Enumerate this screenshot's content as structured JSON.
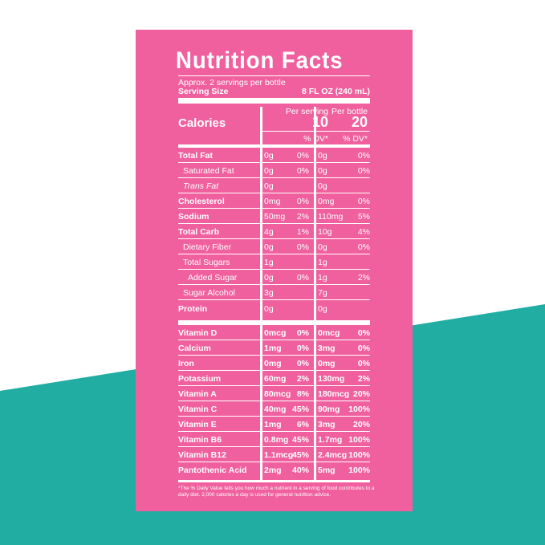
{
  "colors": {
    "pink": "#f0609e",
    "teal": "#21ada2",
    "white": "#ffffff"
  },
  "title": "Nutrition Facts",
  "servings": "Approx. 2 servings per bottle",
  "serving_size_label": "Serving Size",
  "serving_size_value": "8 FL OZ (240 mL)",
  "calories": {
    "label": "Calories",
    "col1_header": "Per serving",
    "col2_header": "Per bottle",
    "col1_value": "10",
    "col2_value": "20"
  },
  "dv_header": "% DV*",
  "rows": [
    {
      "label": "Total Fat",
      "style": "b",
      "v1": "0g",
      "d1": "0%",
      "v2": "0g",
      "d2": "0%"
    },
    {
      "label": "Saturated Fat",
      "style": "i1",
      "v1": "0g",
      "d1": "0%",
      "v2": "0g",
      "d2": "0%"
    },
    {
      "label": "Trans Fat",
      "style": "i1",
      "v1": "0g",
      "d1": "",
      "v2": "0g",
      "d2": ""
    },
    {
      "label": "Cholesterol",
      "style": "b",
      "v1": "0mg",
      "d1": "0%",
      "v2": "0mg",
      "d2": "0%"
    },
    {
      "label": "Sodium",
      "style": "b",
      "v1": "50mg",
      "d1": "2%",
      "v2": "110mg",
      "d2": "5%"
    },
    {
      "label": "Total Carb",
      "style": "b",
      "v1": "4g",
      "d1": "1%",
      "v2": "10g",
      "d2": "4%"
    },
    {
      "label": "Dietary Fiber",
      "style": "i1",
      "v1": "0g",
      "d1": "0%",
      "v2": "0g",
      "d2": "0%"
    },
    {
      "label": "Total Sugars",
      "style": "i1",
      "v1": "1g",
      "d1": "",
      "v2": "1g",
      "d2": ""
    },
    {
      "label": "Added Sugar",
      "style": "i2",
      "v1": "0g",
      "d1": "0%",
      "v2": "1g",
      "d2": "2%"
    },
    {
      "label": "Sugar Alcohol",
      "style": "i1",
      "v1": "3g",
      "d1": "",
      "v2": "7g",
      "d2": ""
    },
    {
      "label": "Protein",
      "style": "b",
      "v1": "0g",
      "d1": "",
      "v2": "0g",
      "d2": ""
    }
  ],
  "vitamins": [
    {
      "label": "Vitamin D",
      "v1": "0mcg",
      "d1": "0%",
      "v2": "0mcg",
      "d2": "0%"
    },
    {
      "label": "Calcium",
      "v1": "1mg",
      "d1": "0%",
      "v2": "3mg",
      "d2": "0%"
    },
    {
      "label": "Iron",
      "v1": "0mg",
      "d1": "0%",
      "v2": "0mg",
      "d2": "0%"
    },
    {
      "label": "Potassium",
      "v1": "60mg",
      "d1": "2%",
      "v2": "130mg",
      "d2": "2%"
    },
    {
      "label": "Vitamin A",
      "v1": "80mcg",
      "d1": "8%",
      "v2": "180mcg",
      "d2": "20%"
    },
    {
      "label": "Vitamin C",
      "v1": "40mg",
      "d1": "45%",
      "v2": "90mg",
      "d2": "100%"
    },
    {
      "label": "Vitamin E",
      "v1": "1mg",
      "d1": "6%",
      "v2": "3mg",
      "d2": "20%"
    },
    {
      "label": "Vitamin B6",
      "v1": "0.8mg",
      "d1": "45%",
      "v2": "1.7mg",
      "d2": "100%"
    },
    {
      "label": "Vitamin B12",
      "v1": "1.1mcg",
      "d1": "45%",
      "v2": "2.4mcg",
      "d2": "100%"
    },
    {
      "label": "Pantothenic Acid",
      "v1": "2mg",
      "d1": "40%",
      "v2": "5mg",
      "d2": "100%"
    }
  ],
  "footnote": "*The % Daily Value tells you how much a nutrient in a serving of food contributes to a daily diet. 2,000 calories a day is used for general nutrition advice."
}
